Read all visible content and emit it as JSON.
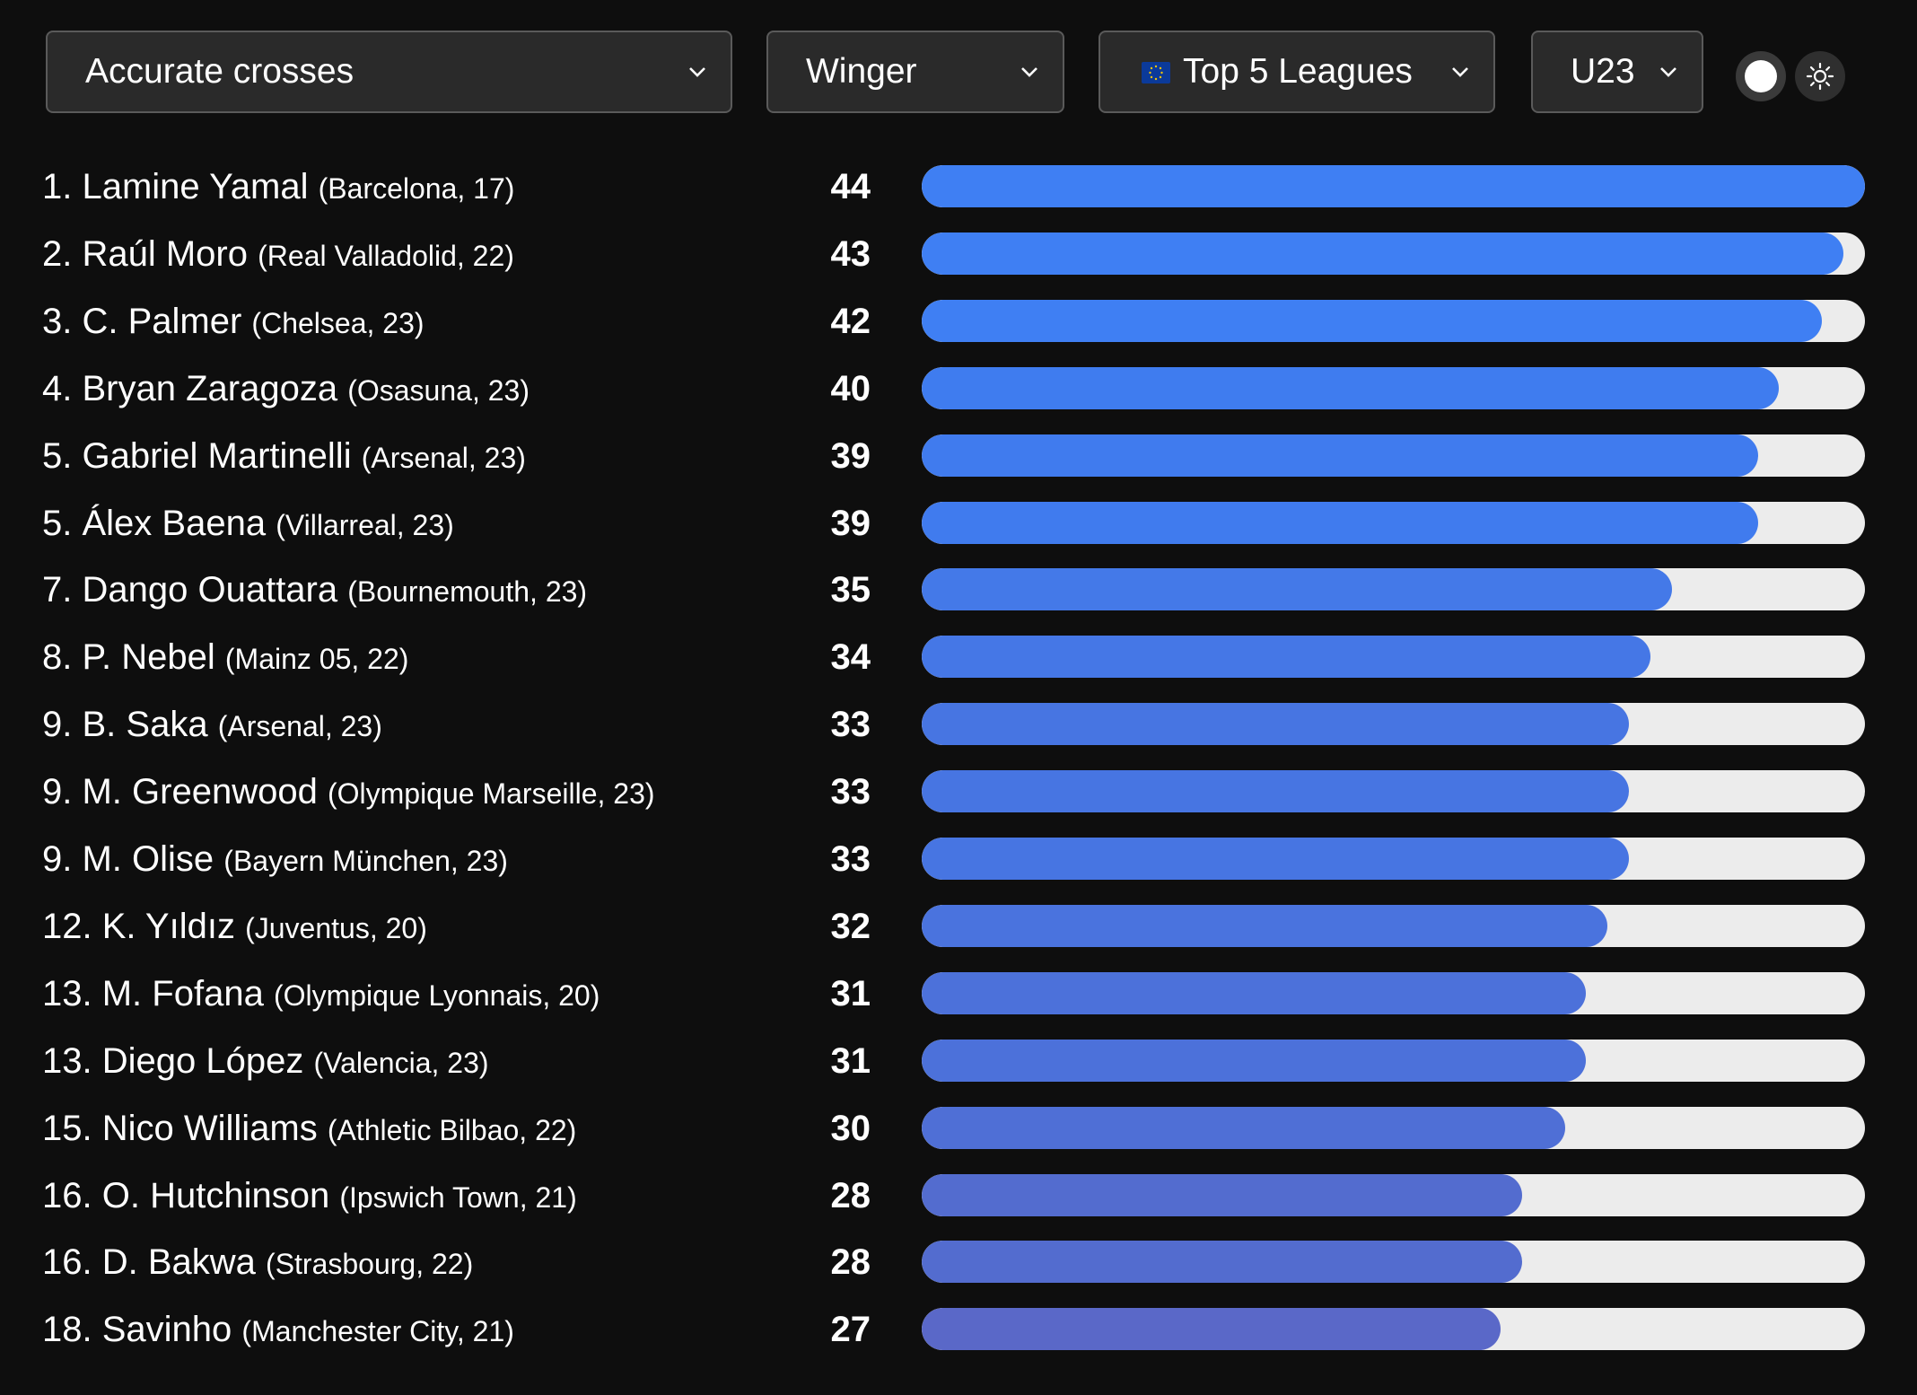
{
  "filters": {
    "stat": "Accurate crosses",
    "position": "Winger",
    "competition": "Top 5 Leagues",
    "age": "U23"
  },
  "max_value": 44,
  "ranking": [
    {
      "rank": "1.",
      "name": "Lamine Yamal",
      "club": "(Barcelona, 17)",
      "value": 44,
      "color": "#3f7ff3"
    },
    {
      "rank": "2.",
      "name": "Raúl Moro",
      "club": "(Real Valladolid, 22)",
      "value": 43,
      "color": "#3f7ff3"
    },
    {
      "rank": "3.",
      "name": "C. Palmer",
      "club": "(Chelsea, 23)",
      "value": 42,
      "color": "#3f7ff3"
    },
    {
      "rank": "4.",
      "name": "Bryan Zaragoza",
      "club": "(Osasuna, 23)",
      "value": 40,
      "color": "#3f7cef"
    },
    {
      "rank": "5.",
      "name": "Gabriel Martinelli",
      "club": "(Arsenal, 23)",
      "value": 39,
      "color": "#407bee"
    },
    {
      "rank": "5.",
      "name": "Álex Baena",
      "club": "(Villarreal, 23)",
      "value": 39,
      "color": "#407bee"
    },
    {
      "rank": "7.",
      "name": "Dango Ouattara",
      "club": "(Bournemouth, 23)",
      "value": 35,
      "color": "#4479e8"
    },
    {
      "rank": "8.",
      "name": "P. Nebel",
      "club": "(Mainz 05, 22)",
      "value": 34,
      "color": "#4577e6"
    },
    {
      "rank": "9.",
      "name": "B. Saka",
      "club": "(Arsenal, 23)",
      "value": 33,
      "color": "#4775e2"
    },
    {
      "rank": "9.",
      "name": "M. Greenwood",
      "club": "(Olympique Marseille, 23)",
      "value": 33,
      "color": "#4775e2"
    },
    {
      "rank": "9.",
      "name": "M. Olise",
      "club": "(Bayern München, 23)",
      "value": 33,
      "color": "#4775e2"
    },
    {
      "rank": "12.",
      "name": "K. Yıldız",
      "club": "(Juventus, 20)",
      "value": 32,
      "color": "#4a73de"
    },
    {
      "rank": "13.",
      "name": "M. Fofana",
      "club": "(Olympique Lyonnais, 20)",
      "value": 31,
      "color": "#4c71da"
    },
    {
      "rank": "13.",
      "name": "Diego López",
      "club": "(Valencia, 23)",
      "value": 31,
      "color": "#4c71da"
    },
    {
      "rank": "15.",
      "name": "Nico Williams",
      "club": "(Athletic Bilbao, 22)",
      "value": 30,
      "color": "#4f6fd6"
    },
    {
      "rank": "16.",
      "name": "O. Hutchinson",
      "club": "(Ipswich Town, 21)",
      "value": 28,
      "color": "#536ccf"
    },
    {
      "rank": "16.",
      "name": "D. Bakwa",
      "club": "(Strasbourg, 22)",
      "value": 28,
      "color": "#536ccf"
    },
    {
      "rank": "18.",
      "name": "Savinho",
      "club": "(Manchester City, 21)",
      "value": 27,
      "color": "#5a68c8"
    }
  ]
}
